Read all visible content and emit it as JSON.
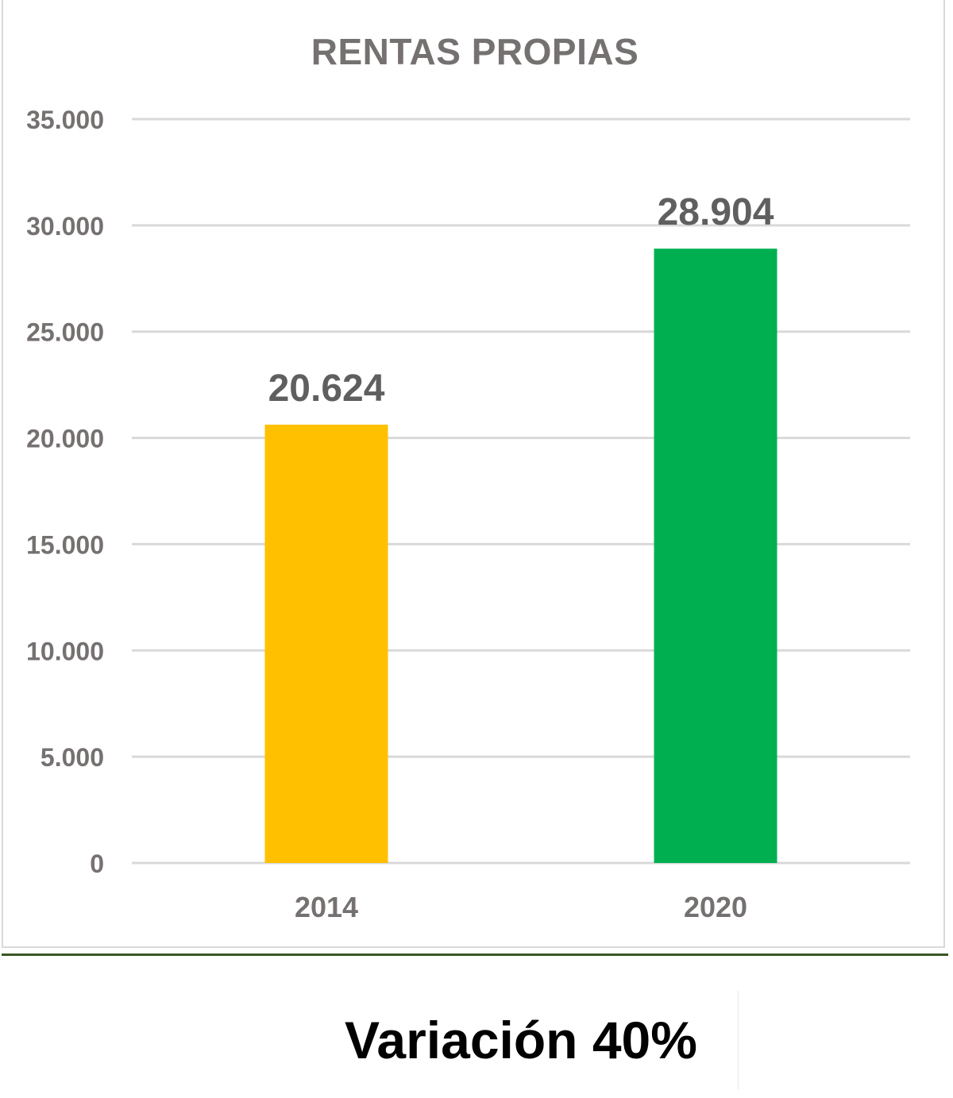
{
  "chart_data": {
    "type": "bar",
    "title": "RENTAS PROPIAS",
    "categories": [
      "2014",
      "2020"
    ],
    "values": [
      20624,
      28904
    ],
    "data_labels": [
      "20.624",
      "28.904"
    ],
    "bar_colors": [
      "#FFC000",
      "#00B050"
    ],
    "ylim": [
      0,
      35000
    ],
    "yticks": [
      0,
      5000,
      10000,
      15000,
      20000,
      25000,
      30000,
      35000
    ],
    "ytick_labels": [
      "0",
      "5.000",
      "10.000",
      "15.000",
      "20.000",
      "25.000",
      "30.000",
      "35.000"
    ],
    "xlabel": "",
    "ylabel": "",
    "grid": true,
    "legend": "none"
  },
  "footer": {
    "variation_text": "Variación 40%"
  },
  "colors": {
    "title_gray": "#767171",
    "tick_gray": "#767171",
    "grid": "#d9d9d9",
    "divider_green": "#375623"
  }
}
